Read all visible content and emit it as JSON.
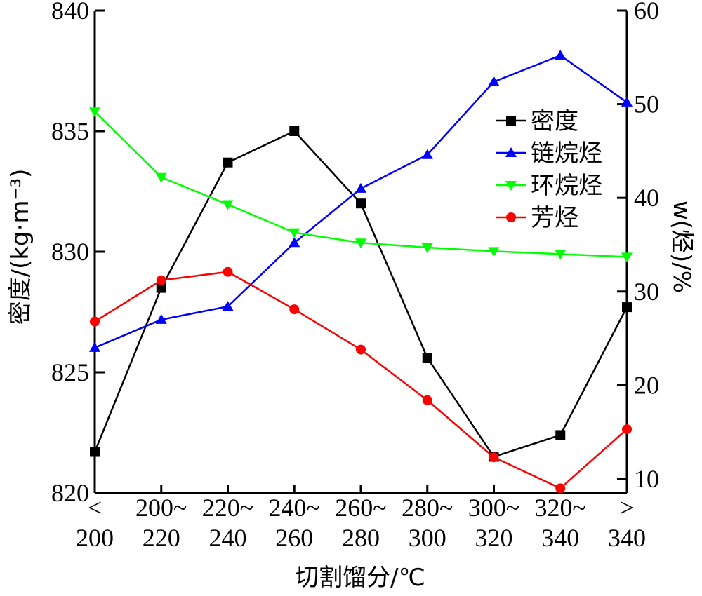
{
  "chart_data": {
    "type": "line",
    "xlabel": "切割馏分/℃",
    "ylabel_left": "密度/(kg·m⁻³)",
    "ylabel_right": "w(烃)/%",
    "categories": [
      [
        "<",
        "200"
      ],
      [
        "200~",
        "220"
      ],
      [
        "220~",
        "240"
      ],
      [
        "240~",
        "260"
      ],
      [
        "260~",
        "280"
      ],
      [
        "280~",
        "300"
      ],
      [
        "300~",
        "320"
      ],
      [
        "320~",
        "340"
      ],
      [
        ">",
        "340"
      ]
    ],
    "ylim_left": [
      820,
      840
    ],
    "yticks_left": [
      820,
      825,
      830,
      835,
      840
    ],
    "ylim_right": [
      8.5,
      60
    ],
    "yticks_right": [
      10,
      20,
      30,
      40,
      50,
      60
    ],
    "legend_position": "right",
    "series": [
      {
        "name": "密度",
        "axis": "left",
        "color": "#000000",
        "marker": "square",
        "values": [
          821.7,
          828.5,
          833.7,
          835.0,
          832.0,
          825.6,
          821.5,
          822.4,
          827.7
        ]
      },
      {
        "name": "链烷烃",
        "axis": "right",
        "color": "#0000ff",
        "marker": "triangle-up",
        "values": [
          24.0,
          27.0,
          28.4,
          35.2,
          41.0,
          44.6,
          52.4,
          55.2,
          50.2
        ]
      },
      {
        "name": "环烷烃",
        "axis": "right",
        "color": "#00ff00",
        "marker": "triangle-down",
        "values": [
          49.2,
          42.2,
          39.3,
          36.3,
          35.2,
          34.7,
          34.3,
          34.0,
          33.7
        ]
      },
      {
        "name": "芳烃",
        "axis": "right",
        "color": "#ff0000",
        "marker": "circle",
        "values": [
          26.8,
          31.2,
          32.1,
          28.1,
          23.8,
          18.4,
          12.3,
          9.0,
          15.3
        ]
      }
    ]
  }
}
